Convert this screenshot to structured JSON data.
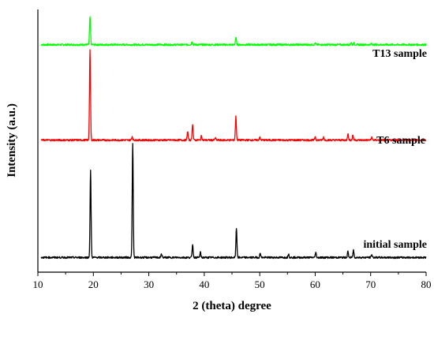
{
  "chart_data": {
    "type": "line",
    "title": "",
    "xlabel": "2 (theta) degree",
    "ylabel": "Intensity (a.u.)",
    "xlim": [
      10,
      80
    ],
    "x_ticks": [
      "10",
      "20",
      "30",
      "40",
      "50",
      "60",
      "70",
      "80"
    ],
    "y_ticks_labeled": false,
    "legend": "none",
    "grid": false,
    "series": [
      {
        "name": "T13 sample",
        "color": "#00ff00",
        "baseline": 3.1,
        "peaks": [
          {
            "x": 19.4,
            "height": 0.38
          },
          {
            "x": 37.8,
            "height": 0.05
          },
          {
            "x": 45.7,
            "height": 0.1
          },
          {
            "x": 60.0,
            "height": 0.02
          },
          {
            "x": 66.5,
            "height": 0.03
          },
          {
            "x": 67.0,
            "height": 0.02
          },
          {
            "x": 70.2,
            "height": 0.02
          }
        ]
      },
      {
        "name": "T6 sample",
        "color": "#ff0000",
        "baseline": 1.8,
        "peaks": [
          {
            "x": 19.4,
            "height": 1.22
          },
          {
            "x": 27.0,
            "height": 0.05
          },
          {
            "x": 37.0,
            "height": 0.12
          },
          {
            "x": 37.9,
            "height": 0.22
          },
          {
            "x": 39.5,
            "height": 0.06
          },
          {
            "x": 42.0,
            "height": 0.03
          },
          {
            "x": 45.7,
            "height": 0.32
          },
          {
            "x": 50.0,
            "height": 0.04
          },
          {
            "x": 60.0,
            "height": 0.05
          },
          {
            "x": 61.5,
            "height": 0.04
          },
          {
            "x": 65.9,
            "height": 0.09
          },
          {
            "x": 66.8,
            "height": 0.07
          },
          {
            "x": 70.2,
            "height": 0.04
          }
        ]
      },
      {
        "name": "initial sample",
        "color": "#000000",
        "baseline": 0.2,
        "peaks": [
          {
            "x": 19.5,
            "height": 1.18
          },
          {
            "x": 27.1,
            "height": 1.55
          },
          {
            "x": 32.3,
            "height": 0.05
          },
          {
            "x": 37.9,
            "height": 0.18
          },
          {
            "x": 39.3,
            "height": 0.07
          },
          {
            "x": 45.8,
            "height": 0.4
          },
          {
            "x": 50.1,
            "height": 0.06
          },
          {
            "x": 55.2,
            "height": 0.05
          },
          {
            "x": 60.1,
            "height": 0.07
          },
          {
            "x": 65.9,
            "height": 0.08
          },
          {
            "x": 66.9,
            "height": 0.1
          },
          {
            "x": 70.2,
            "height": 0.04
          }
        ]
      }
    ]
  }
}
